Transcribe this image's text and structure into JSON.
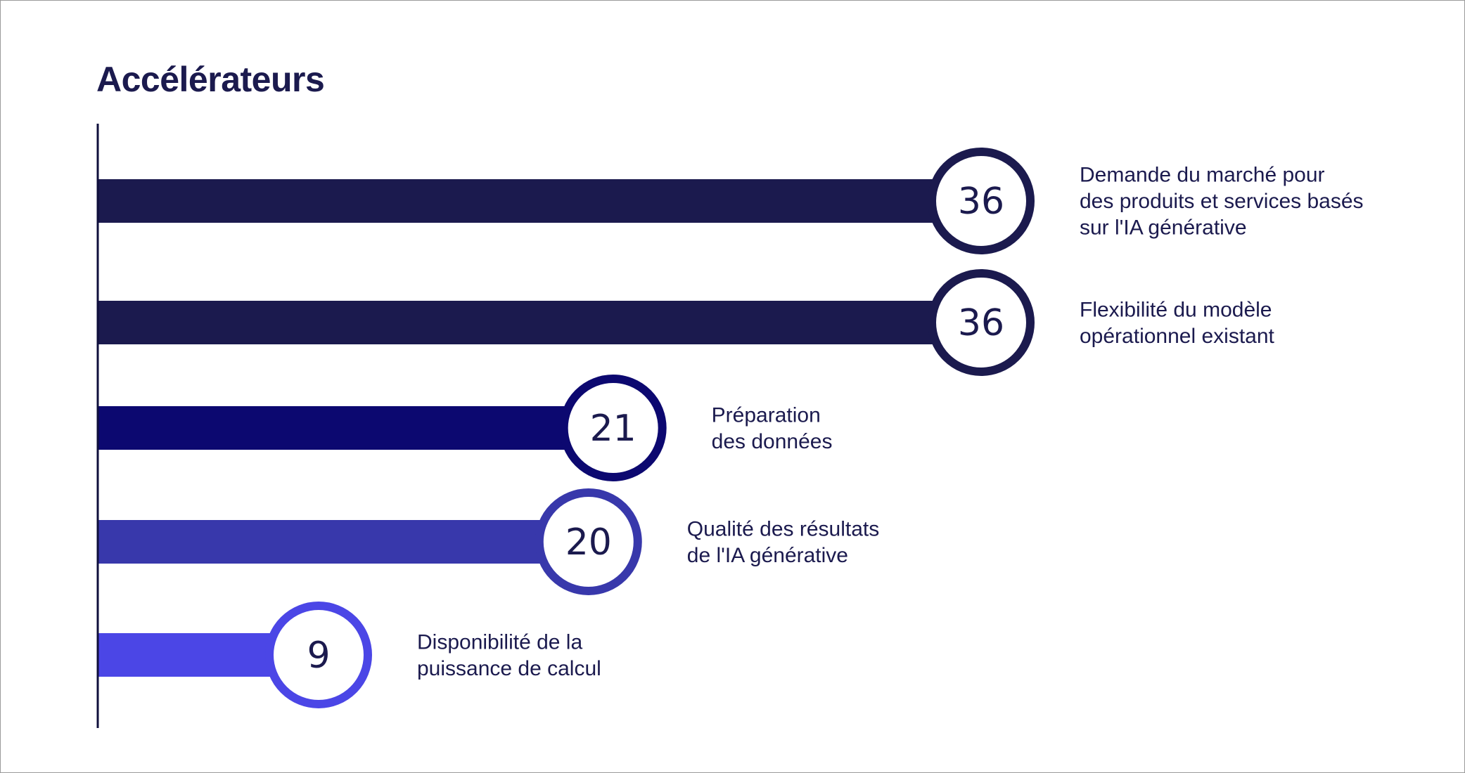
{
  "chart_data": {
    "type": "bar",
    "orientation": "horizontal",
    "title": "Accélérateurs",
    "xlabel": "",
    "ylabel": "",
    "xlim": [
      0,
      36
    ],
    "grid": false,
    "categories": [
      [
        "Demande du marché pour",
        "des produits et services basés",
        "sur l'IA générative"
      ],
      [
        "Flexibilité du modèle",
        "opérationnel existant"
      ],
      [
        "Préparation",
        "des données"
      ],
      [
        "Qualité des résultats",
        "de l'IA générative"
      ],
      [
        "Disponibilité de la",
        "puissance de calcul"
      ]
    ],
    "values": [
      36,
      36,
      21,
      20,
      9
    ],
    "colors": [
      "#1b1a4e",
      "#1b1a4e",
      "#0c0870",
      "#3838ab",
      "#4b46e6"
    ],
    "text_color": "#1b1a4e",
    "axis_color": "#0f0f3c"
  }
}
